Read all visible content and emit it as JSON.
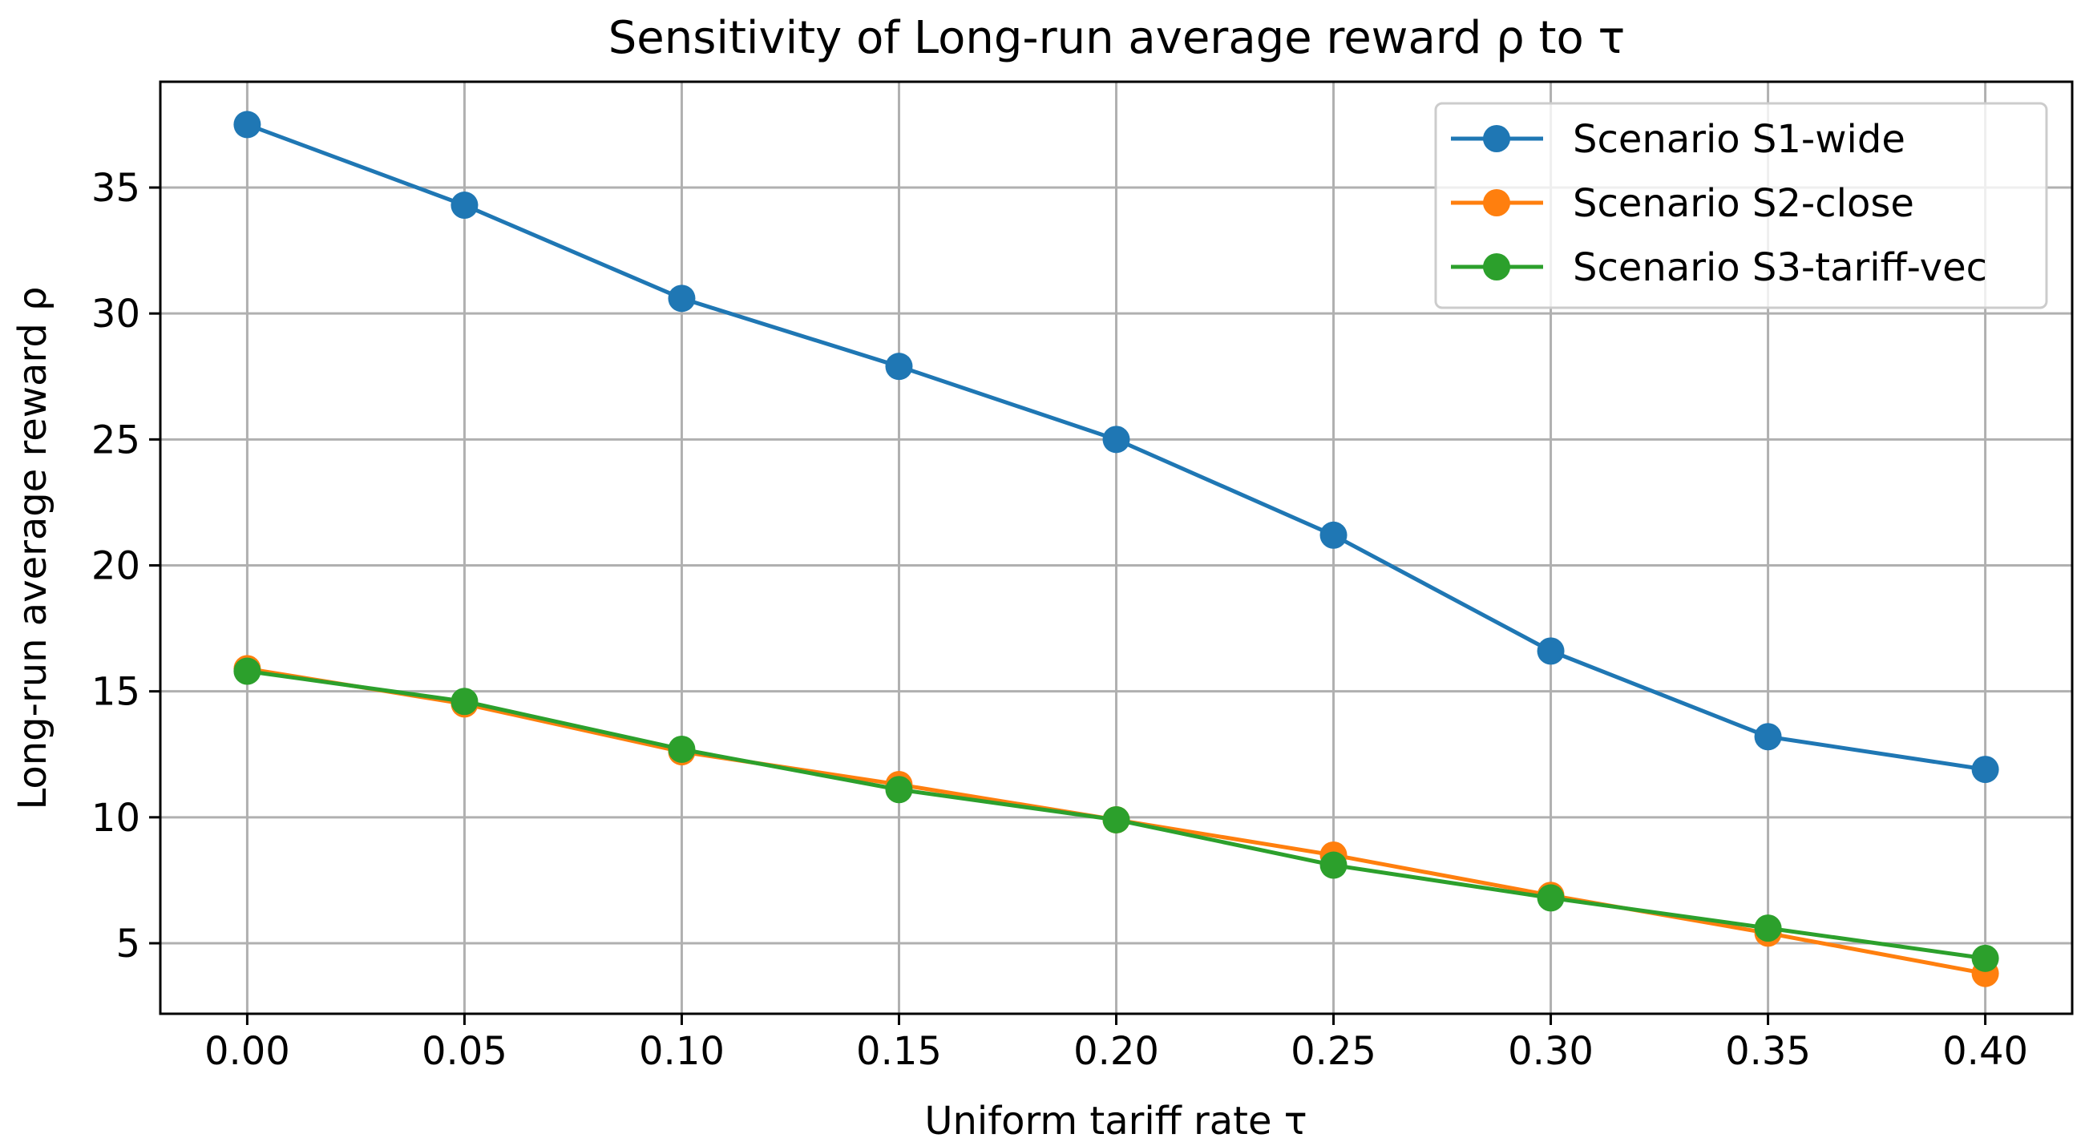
{
  "chart_data": {
    "type": "line",
    "title": "Sensitivity of Long-run average reward ρ to τ",
    "xlabel": "Uniform tariff rate τ",
    "ylabel": "Long-run average reward ρ",
    "x": [
      0.0,
      0.05,
      0.1,
      0.15,
      0.2,
      0.25,
      0.3,
      0.35,
      0.4
    ],
    "x_tick_labels": [
      "0.00",
      "0.05",
      "0.10",
      "0.15",
      "0.20",
      "0.25",
      "0.30",
      "0.35",
      "0.40"
    ],
    "y_ticks": [
      5,
      10,
      15,
      20,
      25,
      30,
      35
    ],
    "y_tick_labels": [
      "5",
      "10",
      "15",
      "20",
      "25",
      "30",
      "35"
    ],
    "xlim": [
      -0.02,
      0.42
    ],
    "ylim": [
      2.2,
      39.2
    ],
    "grid": true,
    "legend_position": "top-right",
    "series": [
      {
        "name": "Scenario S1-wide",
        "color": "#1f77b4",
        "values": [
          37.5,
          34.3,
          30.6,
          27.9,
          25.0,
          21.2,
          16.6,
          13.2,
          11.9
        ]
      },
      {
        "name": "Scenario S2-close",
        "color": "#ff7f0e",
        "values": [
          15.9,
          14.5,
          12.6,
          11.3,
          9.9,
          8.5,
          6.9,
          5.4,
          3.8
        ]
      },
      {
        "name": "Scenario S3-tariff-vec",
        "color": "#2ca02c",
        "values": [
          15.8,
          14.6,
          12.7,
          11.1,
          9.9,
          8.1,
          6.8,
          5.6,
          4.4
        ]
      }
    ]
  }
}
